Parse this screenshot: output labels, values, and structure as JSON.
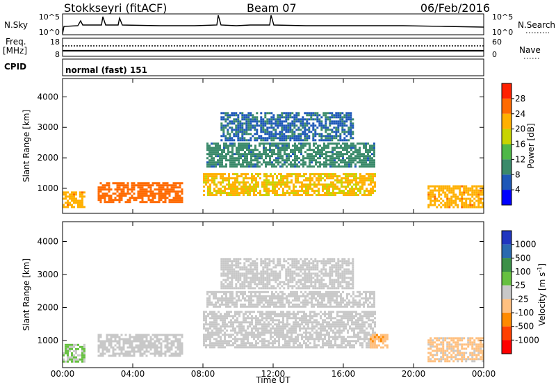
{
  "header": {
    "station": "Stokkseyri (fitACF)",
    "beam": "Beam 07",
    "date": "06/Feb/2016"
  },
  "noise_panel": {
    "left_label": "N.Sky",
    "right_label": "N.Search",
    "left_ticks": [
      "10^5",
      "10^0"
    ],
    "right_ticks": [
      "10^5",
      "10^0"
    ]
  },
  "freq_panel": {
    "left_label_1": "Freq.",
    "left_label_2": "[MHz]",
    "right_label": "Nave",
    "left_ticks": [
      "18",
      "8"
    ],
    "right_ticks": [
      "60",
      "0"
    ]
  },
  "cpid_panel": {
    "label": "CPID",
    "mode_text": "normal (fast) 151"
  },
  "x_axis": {
    "ticks": [
      "00:00",
      "04:00",
      "08:00",
      "12:00",
      "16:00",
      "20:00",
      "00:00"
    ],
    "label": "Time UT"
  },
  "power_panel": {
    "ylabel": "Slant Range [km]",
    "yticks": [
      "4000",
      "3000",
      "2000",
      "1000"
    ],
    "colorbar_label": "Power [dB]",
    "colorbar_ticks": [
      "28",
      "24",
      "20",
      "16",
      "12",
      "8",
      "4"
    ],
    "colorbar_colors": [
      "#ff2000",
      "#ff6a00",
      "#ffb000",
      "#c8d400",
      "#4fb848",
      "#3a8a6a",
      "#1e58b8",
      "#0000ff"
    ]
  },
  "velocity_panel": {
    "ylabel": "Slant Range [km]",
    "yticks": [
      "4000",
      "3000",
      "2000",
      "1000"
    ],
    "colorbar_label": "Velocity  [m s",
    "colorbar_label_sup": "-1",
    "colorbar_label_end": "]",
    "colorbar_ticks": [
      "1000",
      "500",
      "100",
      "25",
      "-25",
      "-100",
      "-500",
      "-1000"
    ],
    "colorbar_colors": [
      "#2036c0",
      "#2a6ab0",
      "#3c9048",
      "#66c040",
      "#c8c8c8",
      "#ffc080",
      "#ff8a00",
      "#ff4000",
      "#ff0000"
    ]
  },
  "chart_data": [
    {
      "type": "heatmap",
      "title": "Power",
      "xlabel": "Time UT",
      "ylabel": "Slant Range [km]",
      "x_range_hours": [
        0,
        24
      ],
      "ylim": [
        180,
        4600
      ],
      "zlabel": "Power [dB]",
      "zlim": [
        0,
        30
      ],
      "regions": [
        {
          "t": [
            0.0,
            1.2
          ],
          "r": [
            380,
            900
          ],
          "z": 22
        },
        {
          "t": [
            2.0,
            6.8
          ],
          "r": [
            550,
            1200
          ],
          "z": 26
        },
        {
          "t": [
            8.0,
            17.8
          ],
          "r": [
            800,
            1500
          ],
          "z": 20
        },
        {
          "t": [
            8.2,
            17.8
          ],
          "r": [
            1700,
            2500
          ],
          "z": 8
        },
        {
          "t": [
            9.0,
            16.5
          ],
          "r": [
            2600,
            3500
          ],
          "z": 6
        },
        {
          "t": [
            20.8,
            24.0
          ],
          "r": [
            380,
            1100
          ],
          "z": 22
        }
      ]
    },
    {
      "type": "heatmap",
      "title": "Velocity",
      "xlabel": "Time UT",
      "ylabel": "Slant Range [km]",
      "x_range_hours": [
        0,
        24
      ],
      "ylim": [
        180,
        4600
      ],
      "zlabel": "Velocity [m s-1]",
      "zlim": [
        -1000,
        1000
      ],
      "regions": [
        {
          "t": [
            0.0,
            1.2
          ],
          "r": [
            380,
            900
          ],
          "z": 150
        },
        {
          "t": [
            2.0,
            6.8
          ],
          "r": [
            550,
            1200
          ],
          "z": 0
        },
        {
          "t": [
            8.0,
            17.8
          ],
          "r": [
            800,
            1900
          ],
          "z": 0
        },
        {
          "t": [
            8.2,
            17.8
          ],
          "r": [
            2000,
            2500
          ],
          "z": 0
        },
        {
          "t": [
            9.0,
            16.5
          ],
          "r": [
            2600,
            3500
          ],
          "z": 0
        },
        {
          "t": [
            17.5,
            18.5
          ],
          "r": [
            800,
            1200
          ],
          "z": -300
        },
        {
          "t": [
            20.8,
            24.0
          ],
          "r": [
            380,
            1100
          ],
          "z": -200
        }
      ]
    }
  ]
}
